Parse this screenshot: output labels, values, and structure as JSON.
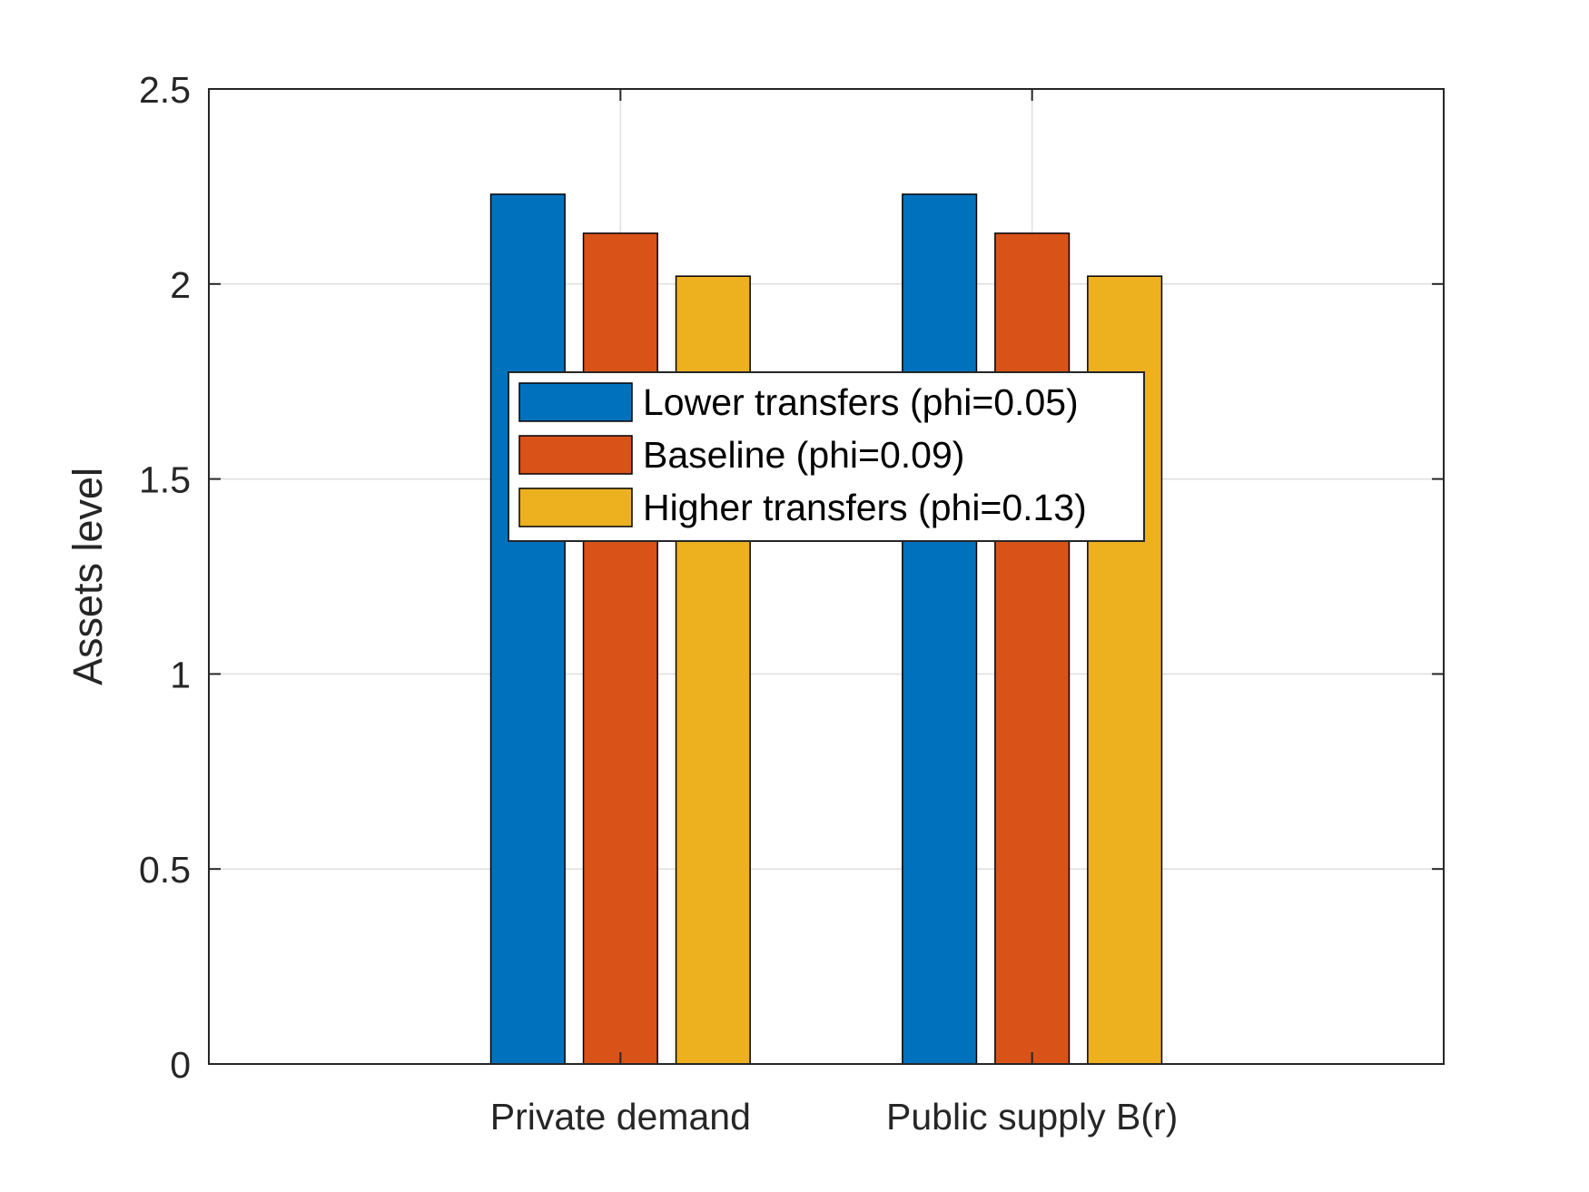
{
  "chart_data": {
    "type": "bar",
    "categories": [
      "Private demand",
      "Public supply B(r)"
    ],
    "series": [
      {
        "name": "Lower transfers (phi=0.05)",
        "values": [
          2.23,
          2.23
        ],
        "color": "#0072BD"
      },
      {
        "name": "Baseline (phi=0.09)",
        "values": [
          2.13,
          2.13
        ],
        "color": "#D95319"
      },
      {
        "name": "Higher transfers (phi=0.13)",
        "values": [
          2.02,
          2.02
        ],
        "color": "#EDB120"
      }
    ],
    "ylabel": "Assets level",
    "xlabel": "",
    "ylim": [
      0,
      2.5
    ],
    "yticks": [
      "0",
      "0.5",
      "1",
      "1.5",
      "2",
      "2.5"
    ],
    "ytick_values": [
      0,
      0.5,
      1,
      1.5,
      2,
      2.5
    ],
    "grid": true,
    "legend_position": "center"
  }
}
